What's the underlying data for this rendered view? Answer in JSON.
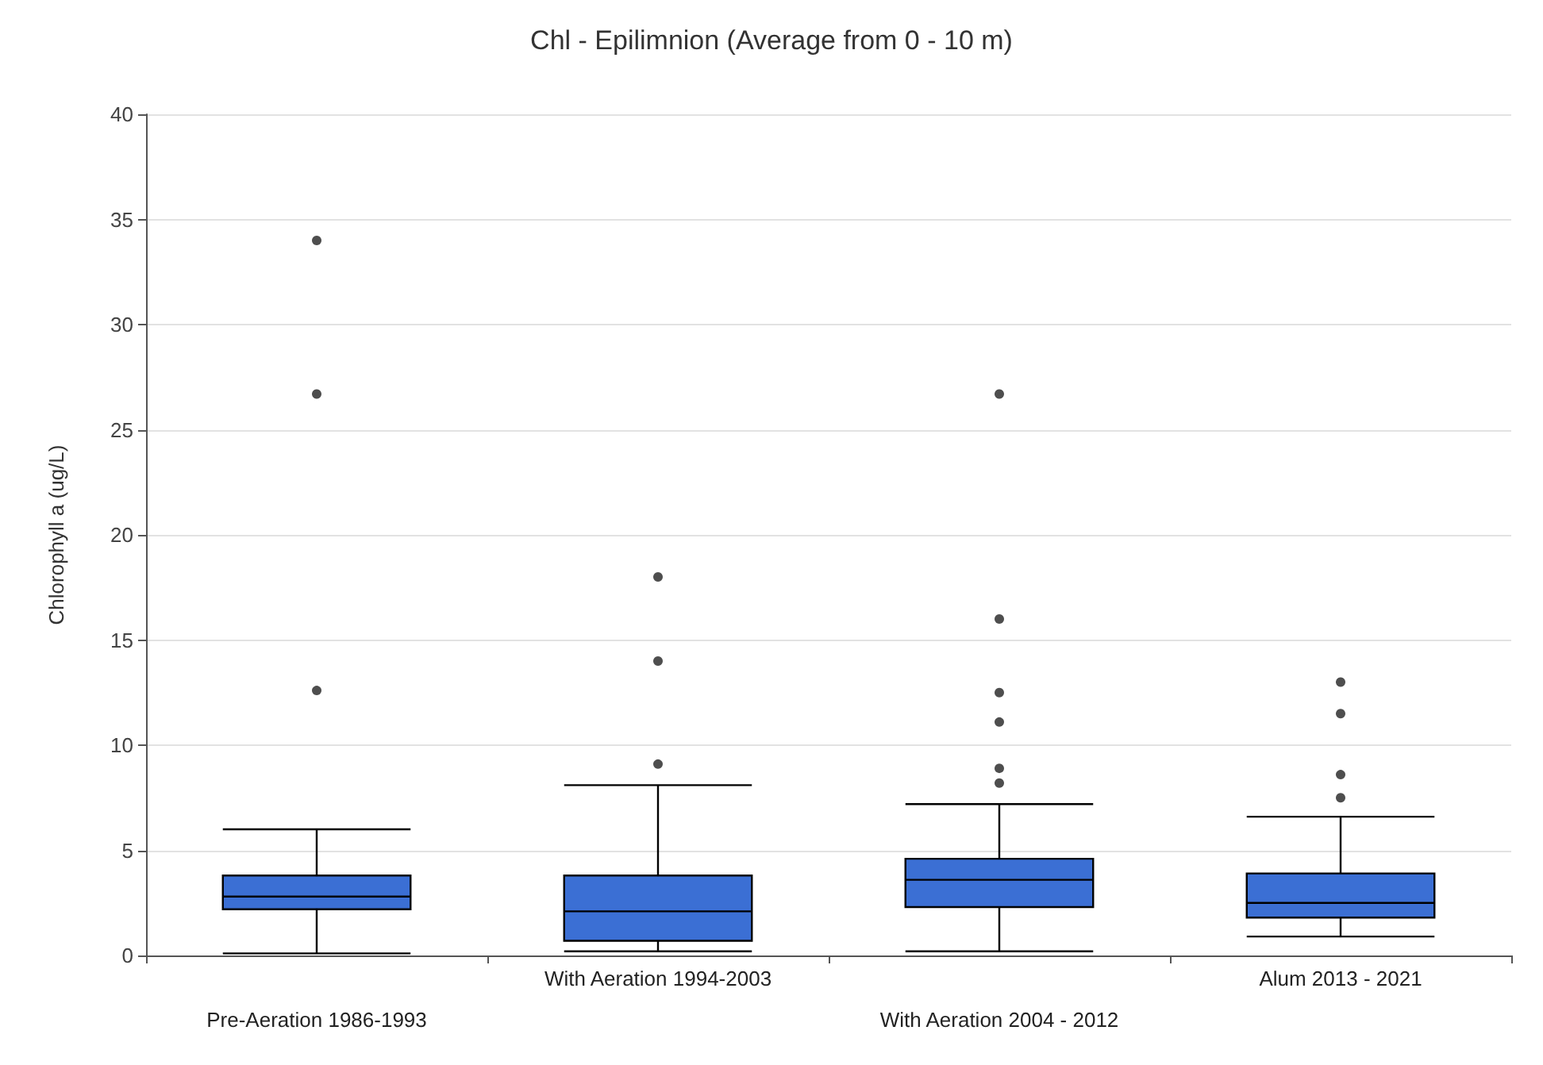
{
  "chart_data": {
    "type": "box",
    "title": "Chl - Epilimnion (Average from 0 - 10 m)",
    "ylabel": "Chlorophyll a (ug/L)",
    "categories": [
      "Pre-Aeration 1986-1993",
      "With Aeration 1994-2003",
      "With Aeration 2004 - 2012",
      "Alum 2013 - 2021"
    ],
    "boxes": [
      {
        "low": 0.1,
        "q1": 2.2,
        "median": 2.8,
        "q3": 3.8,
        "high": 6,
        "outliers": [
          34,
          26.7,
          12.6
        ]
      },
      {
        "low": 0.2,
        "q1": 0.7,
        "median": 2.1,
        "q3": 3.8,
        "high": 8.1,
        "outliers": [
          18,
          14,
          9.1
        ]
      },
      {
        "low": 0.2,
        "q1": 2.3,
        "median": 3.6,
        "q3": 4.6,
        "high": 7.2,
        "outliers": [
          26.7,
          16,
          12.5,
          11.1,
          8.9,
          8.2
        ]
      },
      {
        "low": 0.9,
        "q1": 1.8,
        "median": 2.5,
        "q3": 3.9,
        "high": 6.6,
        "outliers": [
          13,
          11.5,
          8.6,
          7.5
        ]
      }
    ],
    "color": "#3b6fd4",
    "ylim": [
      0,
      40
    ],
    "yticks": [
      0,
      5,
      10,
      15,
      20,
      25,
      30,
      35,
      40
    ],
    "grid": "y"
  }
}
